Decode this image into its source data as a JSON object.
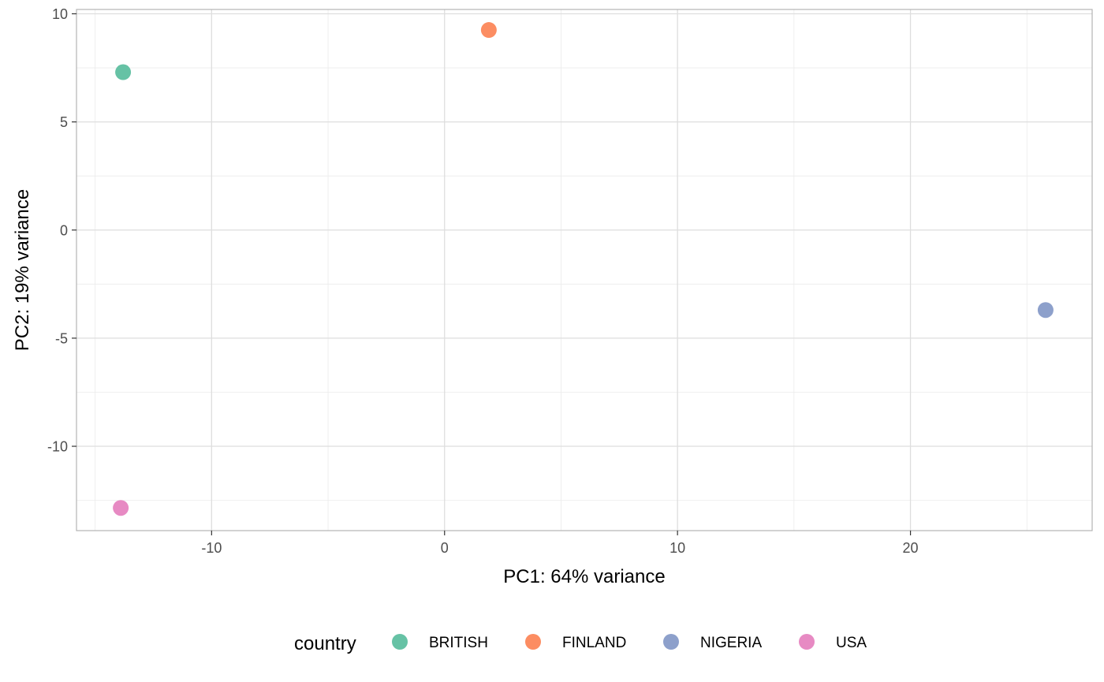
{
  "chart_data": {
    "type": "scatter",
    "xlabel": "PC1: 64% variance",
    "ylabel": "PC2: 19% variance",
    "xlim": [
      -15.8,
      27.8
    ],
    "ylim": [
      -13.9,
      10.2
    ],
    "x_major_ticks": [
      -10,
      0,
      10,
      20
    ],
    "x_minor_ticks": [
      -15,
      -5,
      5,
      15,
      25
    ],
    "y_major_ticks": [
      -10,
      -5,
      0,
      5,
      10
    ],
    "y_minor_ticks": [
      -12.5,
      -7.5,
      -2.5,
      2.5,
      7.5
    ],
    "x_tick_labels": [
      "-10",
      "0",
      "10",
      "20"
    ],
    "y_tick_labels": [
      "-10",
      "-5",
      "0",
      "5",
      "10"
    ],
    "grid": true,
    "legend": {
      "title": "country",
      "position": "bottom"
    },
    "series": [
      {
        "name": "BRITISH",
        "color": "#66C2A5",
        "points": [
          {
            "x": -13.8,
            "y": 7.3
          }
        ]
      },
      {
        "name": "FINLAND",
        "color": "#FC8D62",
        "points": [
          {
            "x": 1.9,
            "y": 9.25
          }
        ]
      },
      {
        "name": "NIGERIA",
        "color": "#8DA0CB",
        "points": [
          {
            "x": 25.8,
            "y": -3.7
          }
        ]
      },
      {
        "name": "USA",
        "color": "#E78AC3",
        "points": [
          {
            "x": -13.9,
            "y": -12.85
          }
        ]
      }
    ]
  }
}
